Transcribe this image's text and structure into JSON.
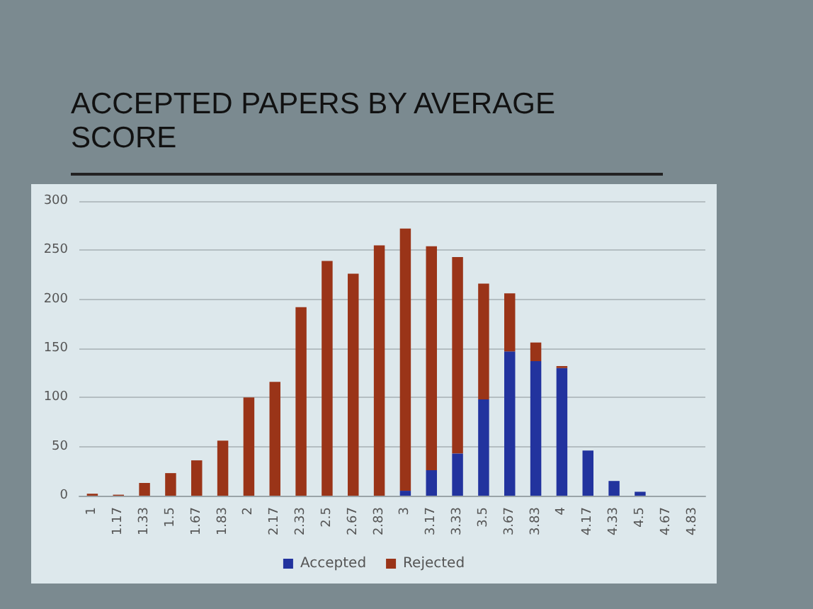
{
  "chart_data": {
    "type": "bar",
    "title": "ACCEPTED PAPERS BY AVERAGE SCORE",
    "categories": [
      "1",
      "1.17",
      "1.33",
      "1.5",
      "1.67",
      "1.83",
      "2",
      "2.17",
      "2.33",
      "2.5",
      "2.67",
      "2.83",
      "3",
      "3.17",
      "3.33",
      "3.5",
      "3.67",
      "3.83",
      "4",
      "4.17",
      "4.33",
      "4.5",
      "4.67",
      "4.83"
    ],
    "series": [
      {
        "name": "Accepted",
        "color": "#22339e",
        "values": [
          0,
          0,
          0,
          0,
          0,
          0,
          0,
          0,
          0,
          0,
          0,
          0,
          5,
          26,
          43,
          98,
          147,
          137,
          130,
          46,
          15,
          4,
          0,
          0
        ]
      },
      {
        "name": "Rejected",
        "color": "#9a3418",
        "values": [
          2,
          1,
          13,
          23,
          36,
          56,
          100,
          116,
          192,
          239,
          226,
          255,
          267,
          228,
          200,
          118,
          59,
          19,
          2,
          0,
          0,
          0,
          0,
          0
        ]
      }
    ],
    "stacked": true,
    "ylim": [
      0,
      300
    ],
    "yticks": [
      0,
      50,
      100,
      150,
      200,
      250,
      300
    ],
    "grid": "y",
    "legend": "bottom"
  }
}
